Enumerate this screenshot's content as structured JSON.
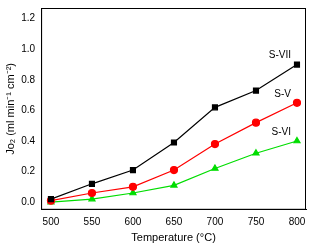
{
  "chart_data": {
    "type": "line",
    "x_label": "Temperature (°C)",
    "y_label": "Jo₂ (ml min⁻¹ cm⁻²)",
    "x": [
      500,
      550,
      600,
      650,
      700,
      750,
      800
    ],
    "series": [
      {
        "name": "S-VII",
        "color": "#000000",
        "marker": "square",
        "values": [
          0.02,
          0.12,
          0.21,
          0.39,
          0.62,
          0.73,
          0.9
        ]
      },
      {
        "name": "S-V",
        "color": "#ff0000",
        "marker": "circle",
        "values": [
          0.01,
          0.06,
          0.1,
          0.21,
          0.38,
          0.52,
          0.65
        ]
      },
      {
        "name": "S-VI",
        "color": "#00dd00",
        "marker": "triangle",
        "values": [
          0.0,
          0.02,
          0.06,
          0.11,
          0.22,
          0.32,
          0.4
        ]
      }
    ],
    "xlim": [
      488,
      811
    ],
    "xticks": [
      500,
      550,
      600,
      650,
      700,
      750,
      800
    ],
    "ylim": [
      -0.05,
      1.27
    ],
    "yticks": [
      {
        "value": 0,
        "label": "0.0"
      },
      0.2,
      0.4,
      0.6,
      0.8,
      {
        "value": 1,
        "label": "1.0"
      },
      1.2
    ],
    "grid": false
  }
}
